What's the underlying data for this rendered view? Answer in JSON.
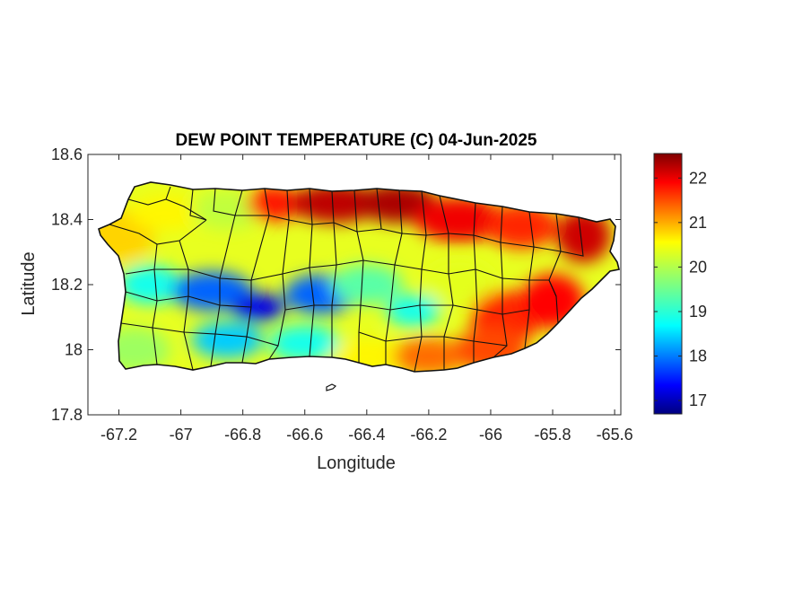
{
  "chart_data": {
    "type": "heatmap",
    "title": "DEW POINT TEMPERATURE (C) 04-Jun-2025",
    "xlabel": "Longitude",
    "ylabel": "Latitude",
    "xlim": [
      -67.3,
      -65.58
    ],
    "ylim": [
      17.8,
      18.6
    ],
    "xticks": [
      -67.2,
      -67,
      -66.8,
      -66.6,
      -66.4,
      -66.2,
      -66,
      -65.8,
      -65.6
    ],
    "xtick_labels": [
      "-67.2",
      "-67",
      "-66.8",
      "-66.6",
      "-66.4",
      "-66.2",
      "-66",
      "-65.8",
      "-65.6"
    ],
    "yticks": [
      17.8,
      18,
      18.2,
      18.4,
      18.6
    ],
    "ytick_labels": [
      "17.8",
      "18",
      "18.2",
      "18.4",
      "18.6"
    ],
    "colorbar": {
      "colormap": "jet",
      "range": [
        16.7,
        22.55
      ],
      "ticks": [
        17,
        18,
        19,
        20,
        21,
        22
      ],
      "tick_labels": [
        "17",
        "18",
        "19",
        "20",
        "21",
        "22"
      ]
    },
    "grid": false,
    "field_description_points": [
      {
        "lon": -67.2,
        "lat": 18.35,
        "value": 20.6
      },
      {
        "lon": -67.05,
        "lat": 18.42,
        "value": 20.4
      },
      {
        "lon": -66.85,
        "lat": 18.43,
        "value": 20.0
      },
      {
        "lon": -66.7,
        "lat": 18.45,
        "value": 21.7
      },
      {
        "lon": -66.5,
        "lat": 18.45,
        "value": 22.2
      },
      {
        "lon": -66.3,
        "lat": 18.45,
        "value": 22.3
      },
      {
        "lon": -66.1,
        "lat": 18.4,
        "value": 21.9
      },
      {
        "lon": -65.9,
        "lat": 18.38,
        "value": 21.6
      },
      {
        "lon": -65.7,
        "lat": 18.35,
        "value": 22.1
      },
      {
        "lon": -67.1,
        "lat": 18.2,
        "value": 19.0
      },
      {
        "lon": -66.9,
        "lat": 18.18,
        "value": 18.0
      },
      {
        "lon": -66.75,
        "lat": 18.13,
        "value": 17.3
      },
      {
        "lon": -66.55,
        "lat": 18.17,
        "value": 18.0
      },
      {
        "lon": -66.4,
        "lat": 18.2,
        "value": 19.4
      },
      {
        "lon": -66.25,
        "lat": 18.12,
        "value": 19.0
      },
      {
        "lon": -66.1,
        "lat": 18.2,
        "value": 20.2
      },
      {
        "lon": -65.95,
        "lat": 18.1,
        "value": 21.6
      },
      {
        "lon": -65.8,
        "lat": 18.15,
        "value": 21.8
      },
      {
        "lon": -67.15,
        "lat": 18.0,
        "value": 19.8
      },
      {
        "lon": -66.85,
        "lat": 18.03,
        "value": 18.6
      },
      {
        "lon": -66.6,
        "lat": 18.02,
        "value": 19.0
      },
      {
        "lon": -66.4,
        "lat": 17.98,
        "value": 20.4
      },
      {
        "lon": -66.2,
        "lat": 17.98,
        "value": 21.2
      },
      {
        "lon": -66.0,
        "lat": 18.0,
        "value": 21.4
      }
    ]
  }
}
